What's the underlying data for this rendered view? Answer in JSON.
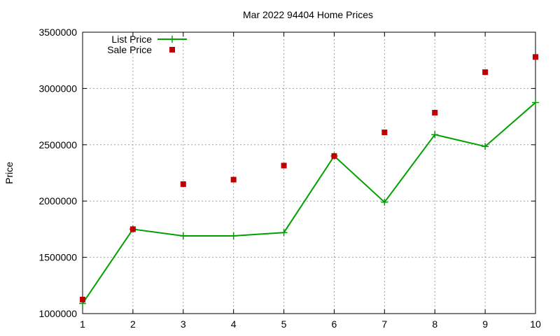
{
  "chart_data": {
    "type": "line",
    "title": "Mar 2022 94404 Home Prices",
    "xlabel": "",
    "ylabel": "Price",
    "xlim": [
      1,
      10
    ],
    "ylim": [
      1000000,
      3500000
    ],
    "x_ticks": [
      1,
      2,
      3,
      4,
      5,
      6,
      7,
      8,
      9,
      10
    ],
    "y_ticks": [
      1000000,
      1500000,
      2000000,
      2500000,
      3000000,
      3500000
    ],
    "grid": true,
    "legend_position": "top-left",
    "series": [
      {
        "name": "List Price",
        "style": "line-with-plus-markers",
        "color": "#00a000",
        "x": [
          1,
          2,
          3,
          4,
          5,
          6,
          7,
          8,
          9,
          10
        ],
        "values": [
          1090000,
          1750000,
          1690000,
          1690000,
          1720000,
          2400000,
          1990000,
          2590000,
          2485000,
          2875000
        ]
      },
      {
        "name": "Sale Price",
        "style": "square-markers",
        "color": "#c00000",
        "x": [
          1,
          2,
          3,
          4,
          5,
          6,
          7,
          8,
          9,
          10
        ],
        "values": [
          1125000,
          1750000,
          2150000,
          2190000,
          2315000,
          2400000,
          2610000,
          2785000,
          3145000,
          3280000
        ]
      }
    ]
  }
}
